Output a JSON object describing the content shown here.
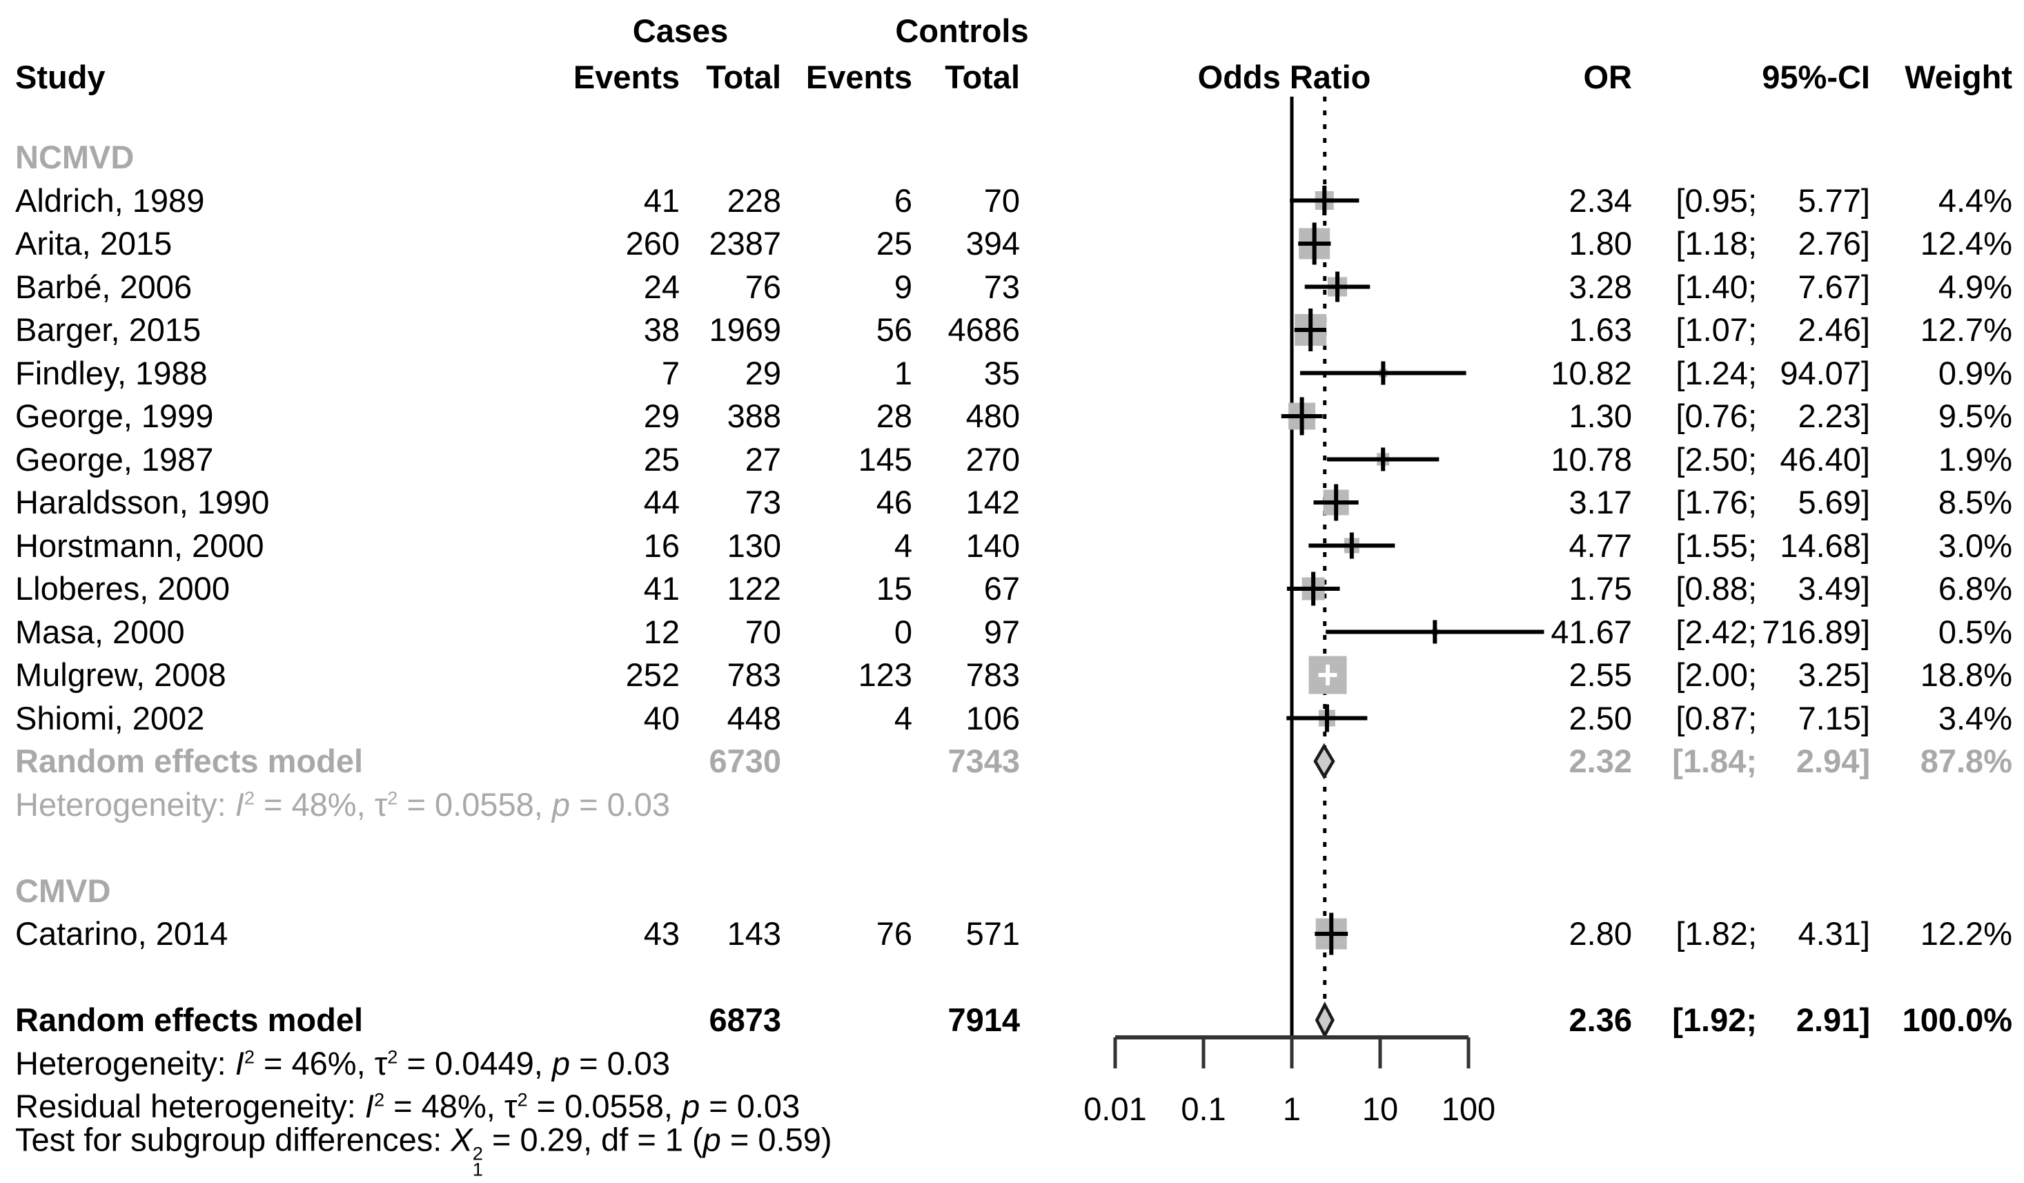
{
  "chart_data": {
    "type": "forest_plot",
    "title": "",
    "columns": {
      "study": "Study",
      "cases": "Cases",
      "controls": "Controls",
      "events": "Events",
      "total": "Total",
      "plot": "Odds Ratio",
      "or": "OR",
      "ci": "95%-CI",
      "weight": "Weight"
    },
    "x_axis": {
      "scale": "log10",
      "ticks": [
        0.01,
        0.1,
        1,
        10,
        100
      ],
      "ref_line": 1,
      "pooled_line": 2.36,
      "grid": false
    },
    "groups": [
      {
        "label": "NCMVD",
        "studies": [
          {
            "name": "Aldrich, 1989",
            "cases_events": 41,
            "cases_total": 228,
            "controls_events": 6,
            "controls_total": 70,
            "or": 2.34,
            "ci_low": 0.95,
            "ci_high": 5.77,
            "weight": 4.4
          },
          {
            "name": "Arita, 2015",
            "cases_events": 260,
            "cases_total": 2387,
            "controls_events": 25,
            "controls_total": 394,
            "or": 1.8,
            "ci_low": 1.18,
            "ci_high": 2.76,
            "weight": 12.4
          },
          {
            "name": "Barbé, 2006",
            "cases_events": 24,
            "cases_total": 76,
            "controls_events": 9,
            "controls_total": 73,
            "or": 3.28,
            "ci_low": 1.4,
            "ci_high": 7.67,
            "weight": 4.9
          },
          {
            "name": "Barger, 2015",
            "cases_events": 38,
            "cases_total": 1969,
            "controls_events": 56,
            "controls_total": 4686,
            "or": 1.63,
            "ci_low": 1.07,
            "ci_high": 2.46,
            "weight": 12.7
          },
          {
            "name": "Findley, 1988",
            "cases_events": 7,
            "cases_total": 29,
            "controls_events": 1,
            "controls_total": 35,
            "or": 10.82,
            "ci_low": 1.24,
            "ci_high": 94.07,
            "weight": 0.9
          },
          {
            "name": "George, 1999",
            "cases_events": 29,
            "cases_total": 388,
            "controls_events": 28,
            "controls_total": 480,
            "or": 1.3,
            "ci_low": 0.76,
            "ci_high": 2.23,
            "weight": 9.5
          },
          {
            "name": "George, 1987",
            "cases_events": 25,
            "cases_total": 27,
            "controls_events": 145,
            "controls_total": 270,
            "or": 10.78,
            "ci_low": 2.5,
            "ci_high": 46.4,
            "weight": 1.9
          },
          {
            "name": "Haraldsson, 1990",
            "cases_events": 44,
            "cases_total": 73,
            "controls_events": 46,
            "controls_total": 142,
            "or": 3.17,
            "ci_low": 1.76,
            "ci_high": 5.69,
            "weight": 8.5
          },
          {
            "name": "Horstmann, 2000",
            "cases_events": 16,
            "cases_total": 130,
            "controls_events": 4,
            "controls_total": 140,
            "or": 4.77,
            "ci_low": 1.55,
            "ci_high": 14.68,
            "weight": 3.0
          },
          {
            "name": "Lloberes, 2000",
            "cases_events": 41,
            "cases_total": 122,
            "controls_events": 15,
            "controls_total": 67,
            "or": 1.75,
            "ci_low": 0.88,
            "ci_high": 3.49,
            "weight": 6.8
          },
          {
            "name": "Masa, 2000",
            "cases_events": 12,
            "cases_total": 70,
            "controls_events": 0,
            "controls_total": 97,
            "or": 41.67,
            "ci_low": 2.42,
            "ci_high": 716.89,
            "weight": 0.5
          },
          {
            "name": "Mulgrew, 2008",
            "cases_events": 252,
            "cases_total": 783,
            "controls_events": 123,
            "controls_total": 783,
            "or": 2.55,
            "ci_low": 2.0,
            "ci_high": 3.25,
            "weight": 18.8
          },
          {
            "name": "Shiomi, 2002",
            "cases_events": 40,
            "cases_total": 448,
            "controls_events": 4,
            "controls_total": 106,
            "or": 2.5,
            "ci_low": 0.87,
            "ci_high": 7.15,
            "weight": 3.4
          }
        ],
        "subtotal": {
          "label": "Random effects model",
          "cases_total": 6730,
          "controls_total": 7343,
          "or": 2.32,
          "ci_low": 1.84,
          "ci_high": 2.94,
          "weight": 87.8
        },
        "heterogeneity": "Heterogeneity: *I*^2^ = 48%, τ^2^ = 0.0558, *p* = 0.03"
      },
      {
        "label": "CMVD",
        "studies": [
          {
            "name": "Catarino, 2014",
            "cases_events": 43,
            "cases_total": 143,
            "controls_events": 76,
            "controls_total": 571,
            "or": 2.8,
            "ci_low": 1.82,
            "ci_high": 4.31,
            "weight": 12.2
          }
        ]
      }
    ],
    "overall": {
      "label": "Random effects model",
      "cases_total": 6873,
      "controls_total": 7914,
      "or": 2.36,
      "ci_low": 1.92,
      "ci_high": 2.91,
      "weight": 100.0
    },
    "footnotes": [
      "Heterogeneity: *I*^2^ = 46%, τ^2^ = 0.0449, *p* = 0.03",
      "Residual heterogeneity: *I*^2^ = 48%, τ^2^ = 0.0558, *p* = 0.03",
      "Test for subgroup differences: *X*{2|1} = 0.29, df = 1 (*p* = 0.59)"
    ],
    "colors": {
      "text": "#000000",
      "gray_text": "#a9a9a9",
      "square": "#b9b9b9",
      "diamond_fill": "#cccccc",
      "diamond_stroke": "#1a1a1a",
      "line": "#000000",
      "axis": "#333333"
    }
  }
}
